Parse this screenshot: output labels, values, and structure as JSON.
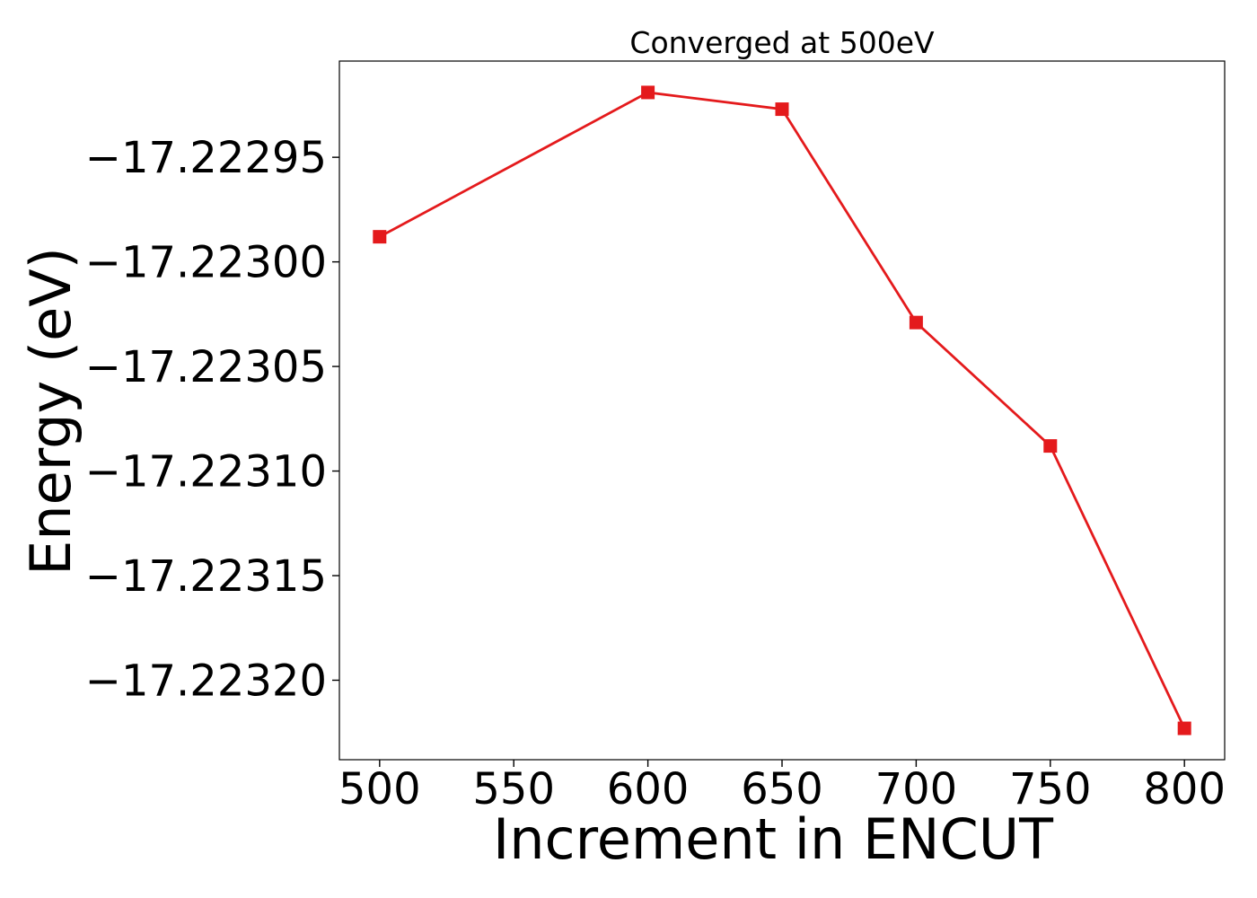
{
  "chart_data": {
    "type": "line",
    "title": "Converged at 500eV",
    "xlabel": "Increment in ENCUT",
    "ylabel": "Energy (eV)",
    "x": [
      500,
      600,
      650,
      700,
      750,
      800
    ],
    "series": [
      {
        "values": [
          -17.222988,
          -17.222919,
          -17.222927,
          -17.223029,
          -17.223088,
          -17.223223
        ],
        "color": "#e41a1c",
        "marker": "square"
      }
    ],
    "xticks": [
      500,
      550,
      600,
      650,
      700,
      750,
      800
    ],
    "xtick_labels": [
      "500",
      "550",
      "600",
      "650",
      "700",
      "750",
      "800"
    ],
    "yticks": [
      -17.22295,
      -17.223,
      -17.22305,
      -17.2231,
      -17.22315,
      -17.2232
    ],
    "ytick_labels": [
      "−17.22295",
      "−17.22300",
      "−17.22305",
      "−17.22310",
      "−17.22315",
      "−17.22320"
    ],
    "xlim": [
      485,
      815
    ],
    "ylim": [
      -17.223238,
      -17.222904
    ],
    "grid": false,
    "legend": "none"
  }
}
